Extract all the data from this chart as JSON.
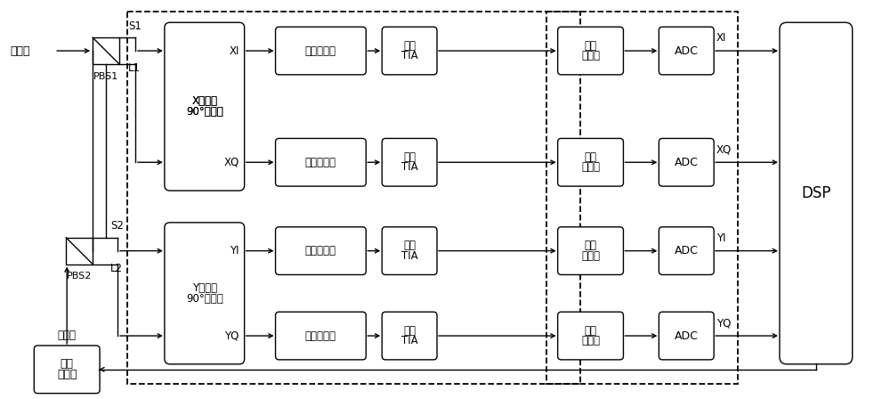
{
  "bg_color": "#ffffff",
  "fig_width": 10.0,
  "fig_height": 4.48,
  "dpi": 100,
  "signal_label": "信号光",
  "lo_label": "本振光",
  "pbs1_label": "PBS1",
  "pbs2_label": "PBS2",
  "s1_label": "S1",
  "l1_label": "L1",
  "s2_label": "S2",
  "l2_label": "L2",
  "tunable_laser_line1": "可调",
  "tunable_laser_line2": "激光器",
  "x_mixer_line1": "X偏振态",
  "x_mixer_line2": "90°混频器",
  "xi_label": "XI",
  "xq_label": "XQ",
  "y_mixer_line1": "Y偏振态",
  "y_mixer_line2": "90°混频器",
  "yi_label": "YI",
  "yq_label": "YQ",
  "bal_det_line1": "平衡探测器",
  "lin_tia_line1": "线性",
  "lin_tia_line2": "TIA",
  "bb_filt_line1": "基带",
  "bb_filt_line2": "滤波器",
  "adc_label": "ADC",
  "dsp_label": "DSP",
  "out_xi": "XI",
  "out_xq": "XQ",
  "out_yi": "YI",
  "out_yq": "YQ"
}
